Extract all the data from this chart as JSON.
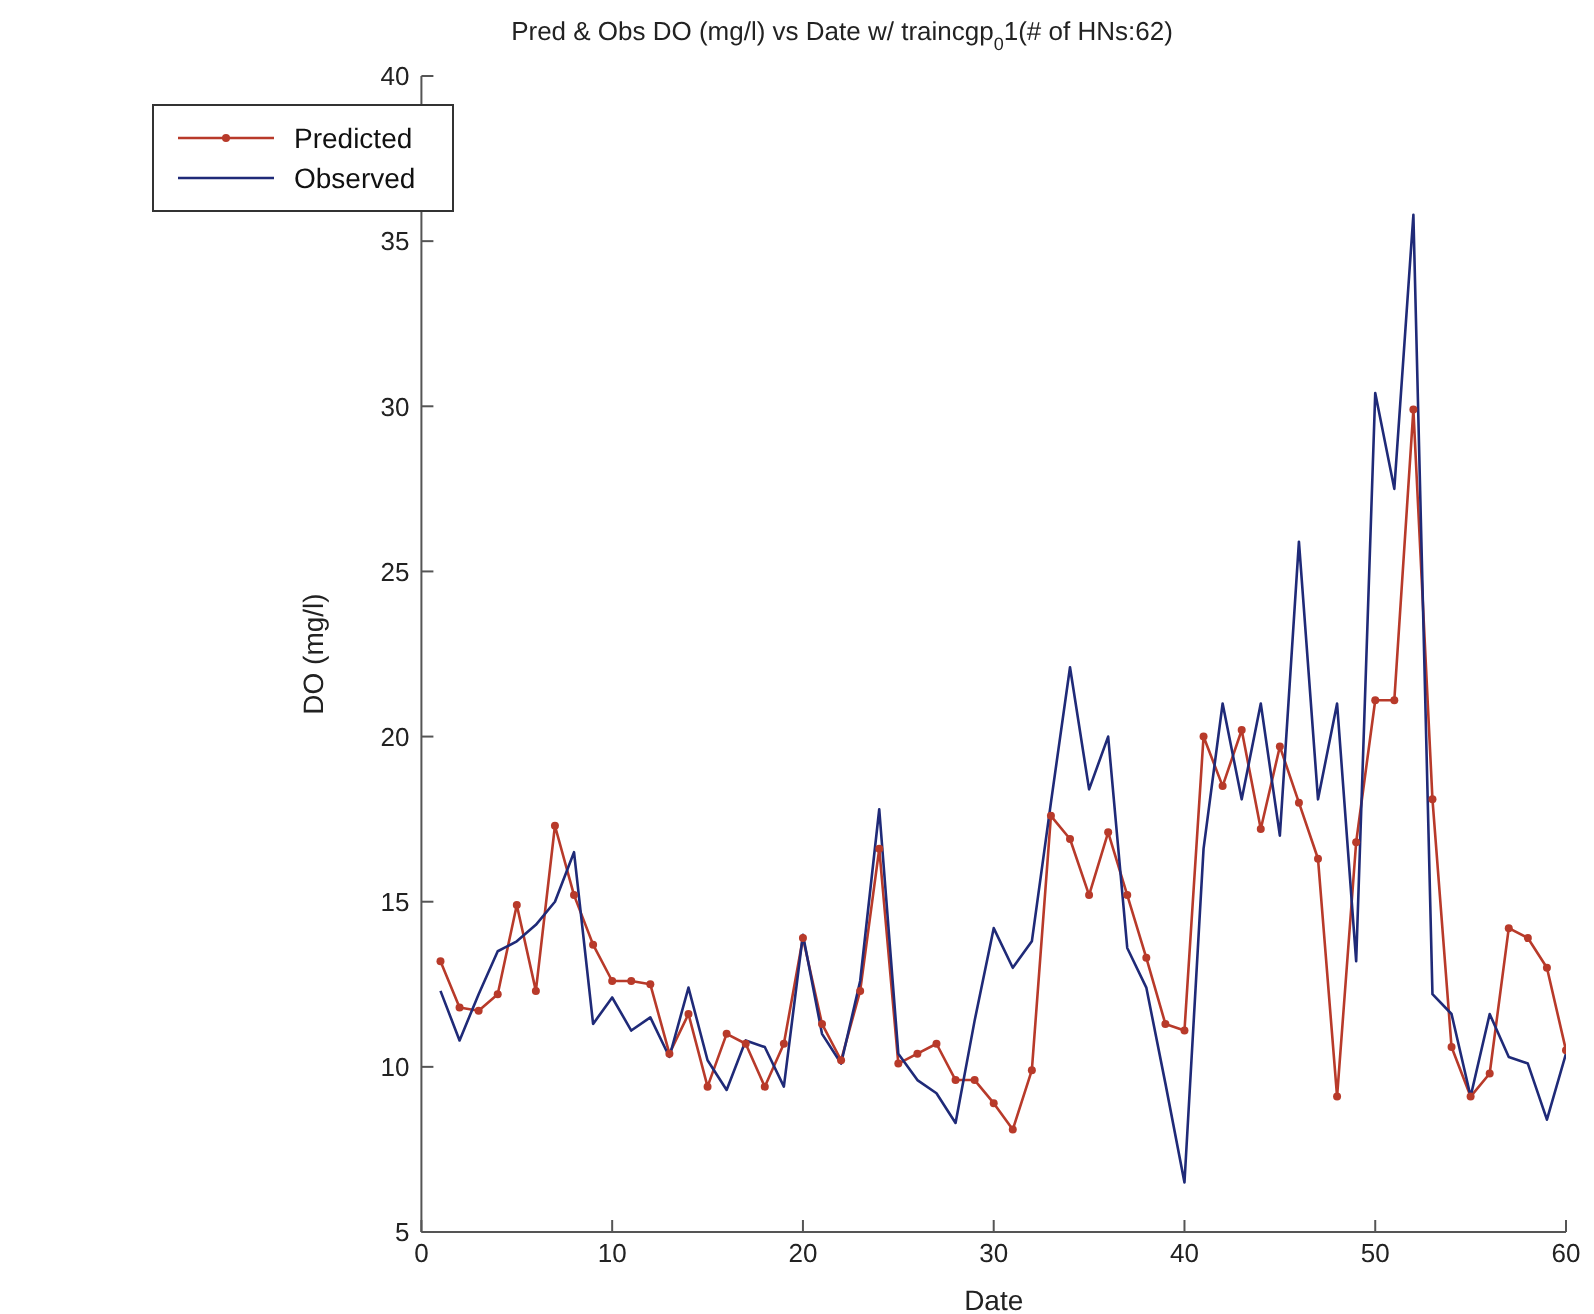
{
  "chart_data": {
    "type": "line",
    "title": "Pred & Obs DO (mg/l) vs Date w/ traincgp$_{0}$1(# of HNs:62)",
    "xlabel": "Date",
    "ylabel": "DO (mg/l)",
    "x": [
      1,
      2,
      3,
      4,
      5,
      6,
      7,
      8,
      9,
      10,
      11,
      12,
      13,
      14,
      15,
      16,
      17,
      18,
      19,
      20,
      21,
      22,
      23,
      24,
      25,
      26,
      27,
      28,
      29,
      30,
      31,
      32,
      33,
      34,
      35,
      36,
      37,
      38,
      39,
      40,
      41,
      42,
      43,
      44,
      45,
      46,
      47,
      48,
      49,
      50,
      51,
      52,
      53,
      54,
      55,
      56,
      57,
      58,
      59,
      60
    ],
    "series": [
      {
        "name": "Predicted",
        "color": "#b83a2a",
        "marker": "circle",
        "values": [
          13.2,
          11.8,
          11.7,
          12.2,
          14.9,
          12.3,
          17.3,
          15.2,
          13.7,
          12.6,
          12.6,
          12.5,
          10.4,
          11.6,
          9.4,
          11.0,
          10.7,
          9.4,
          10.7,
          13.9,
          11.3,
          10.2,
          12.3,
          16.6,
          10.1,
          10.4,
          10.7,
          9.6,
          9.6,
          8.9,
          8.1,
          9.9,
          17.6,
          16.9,
          15.2,
          17.1,
          15.2,
          13.3,
          11.3,
          11.1,
          20.0,
          18.5,
          20.2,
          17.2,
          19.7,
          18.0,
          16.3,
          9.1,
          16.8,
          21.1,
          21.1,
          29.9,
          18.1,
          10.6,
          9.1,
          9.8,
          14.2,
          13.9,
          13.0,
          10.5
        ]
      },
      {
        "name": "Observed",
        "color": "#1f2a78",
        "marker": "none",
        "values": [
          12.3,
          10.8,
          12.2,
          13.5,
          13.8,
          14.3,
          15.0,
          16.5,
          11.3,
          12.1,
          11.1,
          11.5,
          10.3,
          12.4,
          10.2,
          9.3,
          10.8,
          10.6,
          9.4,
          14.0,
          11.0,
          10.1,
          12.6,
          17.8,
          10.4,
          9.6,
          9.2,
          8.3,
          11.4,
          14.2,
          13.0,
          13.8,
          18.0,
          22.1,
          18.4,
          20.0,
          13.6,
          12.4,
          9.5,
          6.5,
          16.6,
          21.0,
          18.1,
          21.0,
          17.0,
          25.9,
          18.1,
          21.0,
          13.2,
          30.4,
          27.5,
          35.8,
          12.2,
          11.6,
          9.1,
          11.6,
          10.3,
          10.1,
          8.4,
          10.4
        ]
      }
    ],
    "xlim": [
      0,
      60
    ],
    "xticks": [
      0,
      10,
      20,
      30,
      40,
      50,
      60
    ],
    "ylim": [
      5,
      40
    ],
    "yticks": [
      5,
      10,
      15,
      20,
      25,
      30,
      35,
      40
    ],
    "legend": "top left",
    "line_style": "solid"
  }
}
